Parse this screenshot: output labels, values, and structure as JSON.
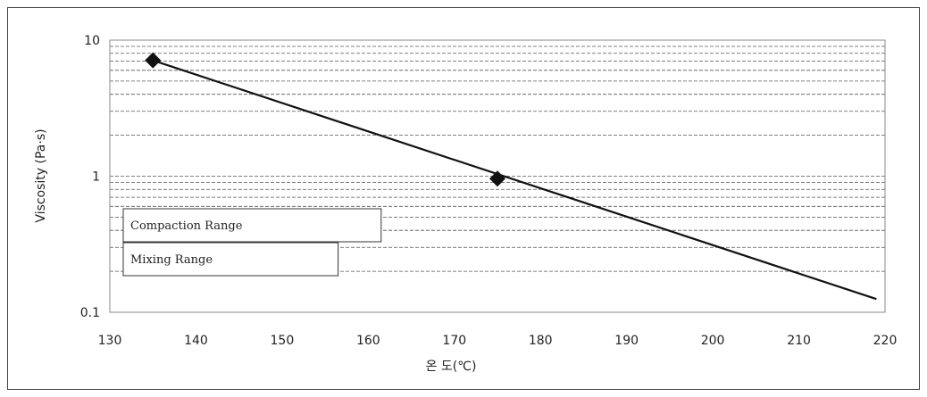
{
  "chart_data": {
    "type": "line",
    "xlabel": "온  도(℃)",
    "ylabel": "Viscosity (Pa·s)",
    "xlim": [
      130,
      220
    ],
    "ylim": [
      0.1,
      10
    ],
    "y_scale": "log",
    "x_ticks": [
      "130",
      "140",
      "150",
      "160",
      "170",
      "180",
      "190",
      "200",
      "210",
      "220"
    ],
    "y_ticks": [
      "0.1",
      "1",
      "10"
    ],
    "grid": "horizontal-minor",
    "series": [
      {
        "x": [
          135,
          219
        ],
        "y": [
          7.1,
          0.125
        ],
        "markers": [
          {
            "x": 135,
            "y": 7.1
          },
          {
            "x": 175,
            "y": 0.96
          }
        ]
      }
    ],
    "ranges": [
      {
        "label": "Compaction Range",
        "x_end": 161.5
      },
      {
        "label": "Mixing Range",
        "x_end": 156.5
      }
    ],
    "colors": {
      "line": "#111111",
      "grid": "#555555",
      "frame": "#444444"
    }
  }
}
